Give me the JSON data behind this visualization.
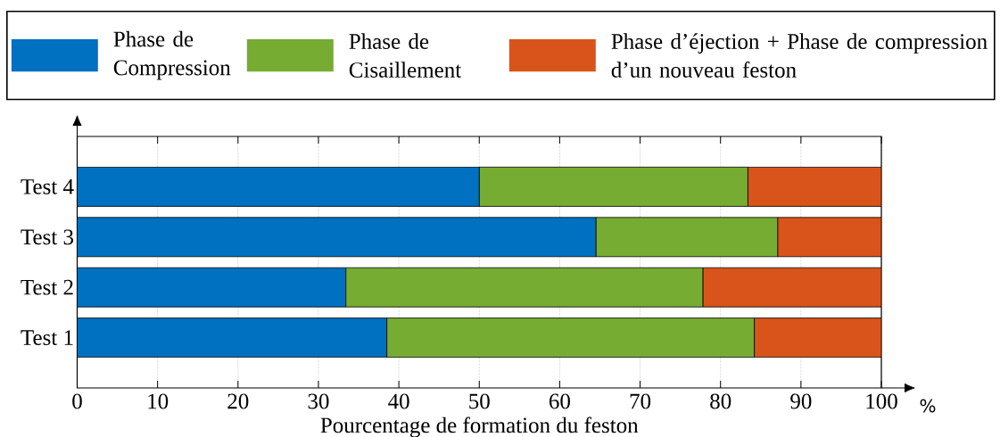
{
  "chart_data": {
    "type": "bar",
    "orientation": "horizontal",
    "stacked": true,
    "xlabel": "Pourcentage de formation du feston",
    "categories": [
      "Test 4",
      "Test 3",
      "Test 2",
      "Test 1"
    ],
    "series": [
      {
        "name": "Phase de Compression",
        "color": "#0070c0",
        "values": [
          50,
          64.5,
          33.4,
          38.5
        ]
      },
      {
        "name": "Phase de Cisaillement",
        "color": "#77ac33",
        "values": [
          33.4,
          22.6,
          44.4,
          45.7
        ]
      },
      {
        "name": "Phase d’éjection + Phase de compression d’un nouveau feston",
        "color": "#d9541a",
        "values": [
          16.6,
          12.9,
          22.2,
          15.8
        ]
      }
    ],
    "xlim": [
      0,
      100
    ],
    "xticks": [
      0,
      10,
      20,
      30,
      40,
      50,
      60,
      70,
      80,
      90,
      100
    ],
    "grid": "x",
    "legend": "top",
    "annotations": [
      "%"
    ]
  }
}
